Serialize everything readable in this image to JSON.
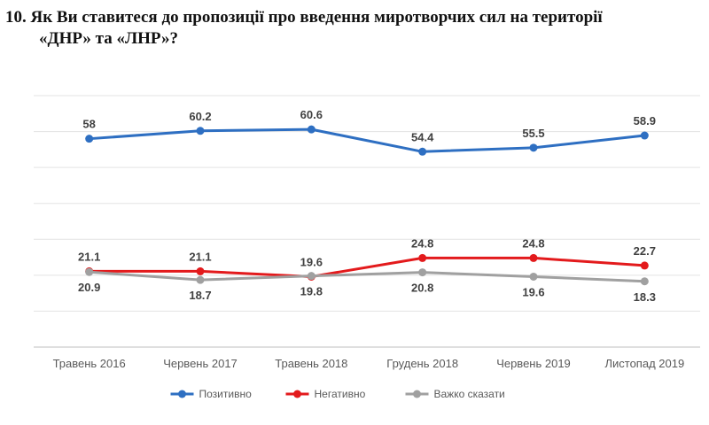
{
  "title": {
    "line1": "10. Як Ви ставитеся до пропозиції про введення миротворчих сил на території",
    "line2": "«ДНР» та «ЛНР»?"
  },
  "chart_data": {
    "type": "line",
    "title": "10. Як Ви ставитеся до пропозиції про введення миротворчих сил на території «ДНР» та «ЛНР»?",
    "categories": [
      "Травень 2016",
      "Червень 2017",
      "Травень 2018",
      "Грудень 2018",
      "Червень 2019",
      "Листопад 2019"
    ],
    "series": [
      {
        "name": "Позитивно",
        "color": "#2e6fc2",
        "values": [
          58,
          60.2,
          60.6,
          54.4,
          55.5,
          58.9
        ],
        "label_position": "above"
      },
      {
        "name": "Негативно",
        "color": "#e31a1c",
        "values": [
          21.1,
          21.1,
          19.6,
          24.8,
          24.8,
          22.7
        ],
        "label_position": "above"
      },
      {
        "name": "Важко сказати",
        "color": "#a0a0a0",
        "values": [
          20.9,
          18.7,
          19.8,
          20.8,
          19.6,
          18.3
        ],
        "label_position": "below"
      }
    ],
    "ylim": [
      0,
      70
    ],
    "grid": true,
    "legend": "bottom",
    "xlabel": "",
    "ylabel": ""
  }
}
